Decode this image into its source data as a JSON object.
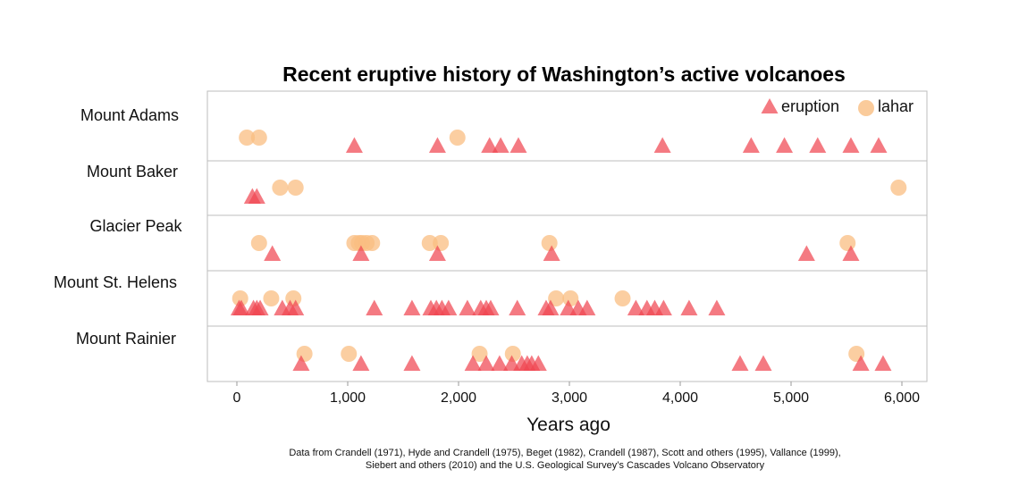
{
  "chart_data": {
    "type": "scatter",
    "title": "Recent eruptive history of Washington’s active volcanoes",
    "xlabel": "Years ago",
    "xlim": [
      -280,
      6230
    ],
    "xticks": [
      0,
      1000,
      2000,
      3000,
      4000,
      5000,
      6000
    ],
    "xtick_labels": [
      "0",
      "1,000",
      "2,000",
      "3,000",
      "4,000",
      "5,000",
      "6,000"
    ],
    "legend": {
      "placement": "top-right",
      "entries": [
        {
          "label": "eruption",
          "marker": "triangle",
          "color": "#f05a64"
        },
        {
          "label": "lahar",
          "marker": "circle",
          "color": "#f9be82"
        }
      ]
    },
    "volcanoes": [
      {
        "name": "Mount Adams",
        "eruption": [
          1060,
          1810,
          2280,
          2380,
          2540,
          3840,
          4640,
          4940,
          5240,
          5540,
          5790
        ],
        "lahar": [
          90,
          200,
          1990
        ]
      },
      {
        "name": "Mount Baker",
        "eruption": [
          140,
          180
        ],
        "lahar": [
          390,
          530,
          5970
        ]
      },
      {
        "name": "Glacier Peak",
        "eruption": [
          320,
          1120,
          1810,
          2840,
          5140,
          5540
        ],
        "lahar": [
          200,
          1060,
          1100,
          1130,
          1170,
          1220,
          1740,
          1840,
          2820,
          5510
        ]
      },
      {
        "name": "Mount St. Helens",
        "eruption": [
          20,
          40,
          150,
          180,
          210,
          410,
          480,
          530,
          1240,
          1580,
          1750,
          1800,
          1850,
          1910,
          2080,
          2200,
          2250,
          2290,
          2530,
          2790,
          2830,
          2990,
          3080,
          3160,
          3600,
          3700,
          3770,
          3850,
          4080,
          4330
        ],
        "lahar": [
          30,
          310,
          510,
          2880,
          3010,
          3480
        ]
      },
      {
        "name": "Mount Rainier",
        "eruption": [
          580,
          1120,
          1580,
          2130,
          2250,
          2370,
          2480,
          2570,
          2620,
          2660,
          2720,
          4540,
          4750,
          5630,
          5830
        ],
        "lahar": [
          610,
          1010,
          2190,
          2490,
          5590
        ]
      }
    ],
    "source": [
      "Data from Crandell (1971), Hyde and Crandell (1975), Beget (1982), Crandell (1987), Scott and others (1995), Vallance (1999),",
      "Siebert and others (2010) and the U.S. Geological Survey’s Cascades Volcano Observatory"
    ]
  }
}
